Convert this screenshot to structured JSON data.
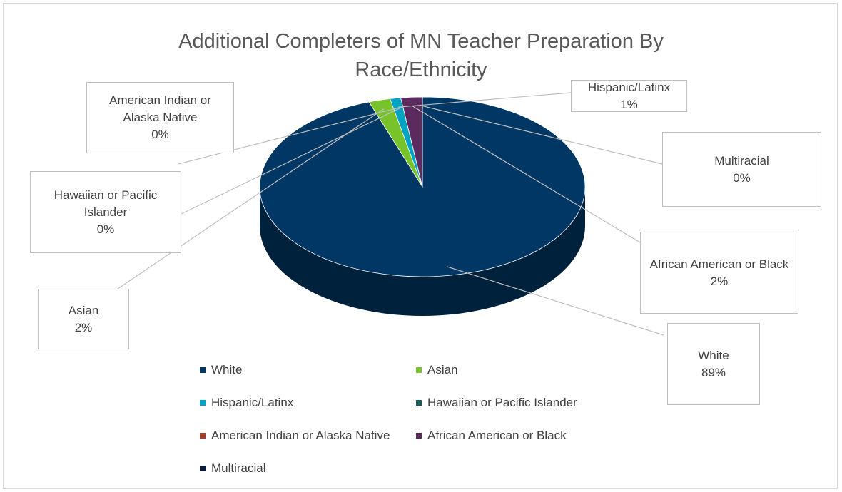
{
  "chart_data": {
    "type": "pie",
    "title": "Additional Completers of MN Teacher Preparation By Race/Ethnicity",
    "categories": [
      "White",
      "Asian",
      "Hispanic/Latinx",
      "Hawaiian or Pacific Islander",
      "American Indian or Alaska Native",
      "African American or Black",
      "Multiracial"
    ],
    "values": [
      89,
      2,
      1,
      0,
      0,
      2,
      0
    ],
    "value_labels": [
      "89%",
      "2%",
      "1%",
      "0%",
      "0%",
      "2%",
      "0%"
    ],
    "colors": [
      "#003764",
      "#78c22c",
      "#00a3c4",
      "#1e5c5c",
      "#a0432a",
      "#5b2a5e",
      "#0b1c3d"
    ],
    "legend": "bottom"
  }
}
